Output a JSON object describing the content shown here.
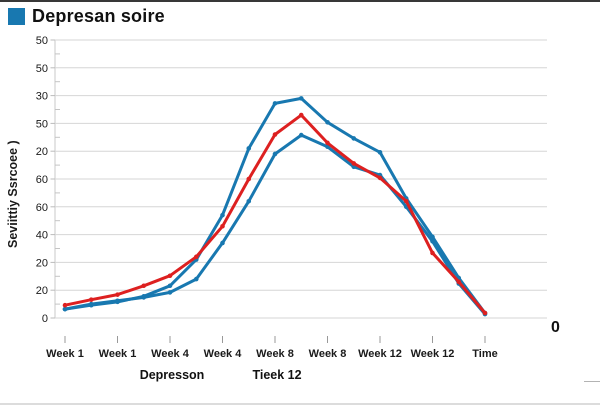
{
  "page": {
    "title": "Depresan soire",
    "right_zero_label": "0",
    "accent_blue": "#1878b0",
    "accent_red": "#dd2020"
  },
  "chart_data": {
    "type": "line",
    "title": "Depresan soire",
    "y_axis_title": "Seviittiy Ssrcoee )",
    "y_tick_labels_top_to_bottom": [
      "50",
      "50",
      "30",
      "50",
      "20",
      "60",
      "60",
      "40",
      "20",
      "20",
      "0"
    ],
    "x_tick_labels": [
      "Week 1",
      "Week 1",
      "Week 4",
      "Week 4",
      "Week 8",
      "Week 8",
      "Week 12",
      "Week 12",
      "Time"
    ],
    "x_axis_sub_labels": [
      {
        "text": "Depresson",
        "tick_index": 2
      },
      {
        "text": "Tieek 12",
        "tick_index": 4
      }
    ],
    "ylim": [
      0,
      50
    ],
    "grid": true,
    "legend_position": "top-left-title",
    "series": [
      {
        "name": "blue-upper",
        "color": "#1878b0",
        "values": [
          1.6,
          2.3,
          2.9,
          3.9,
          5.8,
          10.5,
          18.5,
          30.5,
          38.6,
          39.5,
          35.2,
          32.3,
          29.8,
          21.5,
          14.6,
          7.2,
          0.9
        ]
      },
      {
        "name": "blue-lower",
        "color": "#1878b0",
        "values": [
          1.6,
          2.5,
          3.1,
          3.7,
          4.6,
          7.0,
          13.5,
          21.0,
          29.5,
          32.9,
          30.8,
          27.2,
          25.7,
          20.0,
          13.8,
          6.2,
          0.7
        ]
      },
      {
        "name": "red",
        "color": "#dd2020",
        "values": [
          2.3,
          3.3,
          4.2,
          5.8,
          7.6,
          11.0,
          16.5,
          25.0,
          33.0,
          36.5,
          31.5,
          27.8,
          25.2,
          21.0,
          11.7,
          6.5,
          0.9
        ]
      }
    ]
  }
}
